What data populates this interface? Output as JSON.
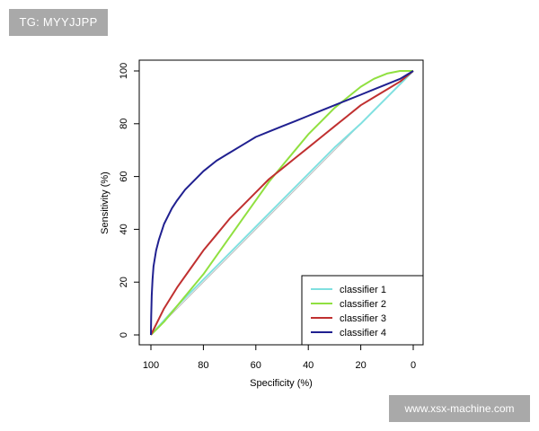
{
  "watermark_top": {
    "text": "TG: MYYJJPP",
    "bg": "#a9a9a9"
  },
  "watermark_bottom": {
    "text": "www.xsx-machine.com",
    "bg": "#a9a9a9"
  },
  "chart_data": {
    "type": "line",
    "title": "",
    "xlabel": "Specificity (%)",
    "ylabel": "Sensitivity (%)",
    "xlim": [
      100,
      0
    ],
    "ylim": [
      0,
      100
    ],
    "xticks": [
      100,
      80,
      60,
      40,
      20,
      0
    ],
    "yticks": [
      0,
      20,
      40,
      60,
      80,
      100
    ],
    "grid": false,
    "legend_position": "bottom-right",
    "reference_line": {
      "from": [
        100,
        0
      ],
      "to": [
        0,
        100
      ],
      "color": "#bbbbbb"
    },
    "series": [
      {
        "name": "classifier 1",
        "color": "#80e0e0",
        "x": [
          100,
          90,
          80,
          70,
          60,
          50,
          40,
          30,
          20,
          10,
          0
        ],
        "y": [
          0,
          11,
          21,
          31,
          41,
          51,
          61,
          71,
          80,
          90,
          100
        ]
      },
      {
        "name": "classifier 2",
        "color": "#90e040",
        "x": [
          100,
          95,
          90,
          85,
          80,
          75,
          70,
          65,
          60,
          55,
          50,
          45,
          40,
          35,
          30,
          25,
          20,
          15,
          10,
          5,
          0
        ],
        "y": [
          0,
          5,
          11,
          17,
          23,
          30,
          37,
          44,
          51,
          58,
          64,
          70,
          76,
          81,
          86,
          90,
          94,
          97,
          99,
          100,
          100
        ]
      },
      {
        "name": "classifier 3",
        "color": "#c03030",
        "x": [
          100,
          95,
          90,
          85,
          80,
          75,
          70,
          65,
          60,
          55,
          50,
          45,
          40,
          35,
          30,
          25,
          20,
          15,
          10,
          5,
          0
        ],
        "y": [
          0,
          10,
          18,
          25,
          32,
          38,
          44,
          49,
          54,
          59,
          63,
          67,
          71,
          75,
          79,
          83,
          87,
          90,
          93,
          96,
          100
        ]
      },
      {
        "name": "classifier 4",
        "color": "#202090",
        "x": [
          100,
          99.9,
          99.7,
          99.4,
          99,
          98,
          97,
          95,
          92,
          90,
          87,
          85,
          80,
          75,
          70,
          65,
          60,
          55,
          50,
          45,
          40,
          35,
          30,
          25,
          20,
          15,
          10,
          5,
          0
        ],
        "y": [
          0,
          7,
          15,
          21,
          26,
          32,
          36,
          42,
          48,
          51,
          55,
          57,
          62,
          66,
          69,
          72,
          75,
          77,
          79,
          81,
          83,
          85,
          87,
          89,
          91,
          93,
          95,
          97,
          100
        ]
      }
    ]
  }
}
